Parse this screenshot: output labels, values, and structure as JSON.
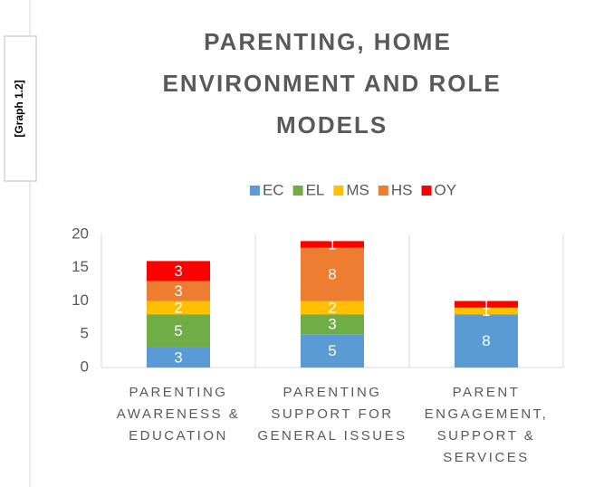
{
  "side_label": "[Graph 1.2]",
  "chart_data": {
    "type": "stacked_bar",
    "title": "PARENTING, HOME ENVIRONMENT AND ROLE MODELS",
    "categories": [
      "PARENTING AWARENESS & EDUCATION",
      "PARENTING SUPPORT FOR GENERAL ISSUES",
      "PARENT ENGAGEMENT, SUPPORT & SERVICES"
    ],
    "series": [
      {
        "name": "EC",
        "color": "#5b9bd5",
        "values": [
          3,
          5,
          8
        ]
      },
      {
        "name": "EL",
        "color": "#70ad47",
        "values": [
          5,
          3,
          0
        ]
      },
      {
        "name": "MS",
        "color": "#ffc000",
        "values": [
          2,
          2,
          1
        ]
      },
      {
        "name": "HS",
        "color": "#ed7d31",
        "values": [
          3,
          8,
          0
        ]
      },
      {
        "name": "OY",
        "color": "#ff0000",
        "values": [
          3,
          1,
          1
        ]
      }
    ],
    "ylim": [
      0,
      20
    ],
    "yticks": [
      0,
      5,
      10,
      15,
      20
    ],
    "grid": false,
    "legend": "top"
  }
}
